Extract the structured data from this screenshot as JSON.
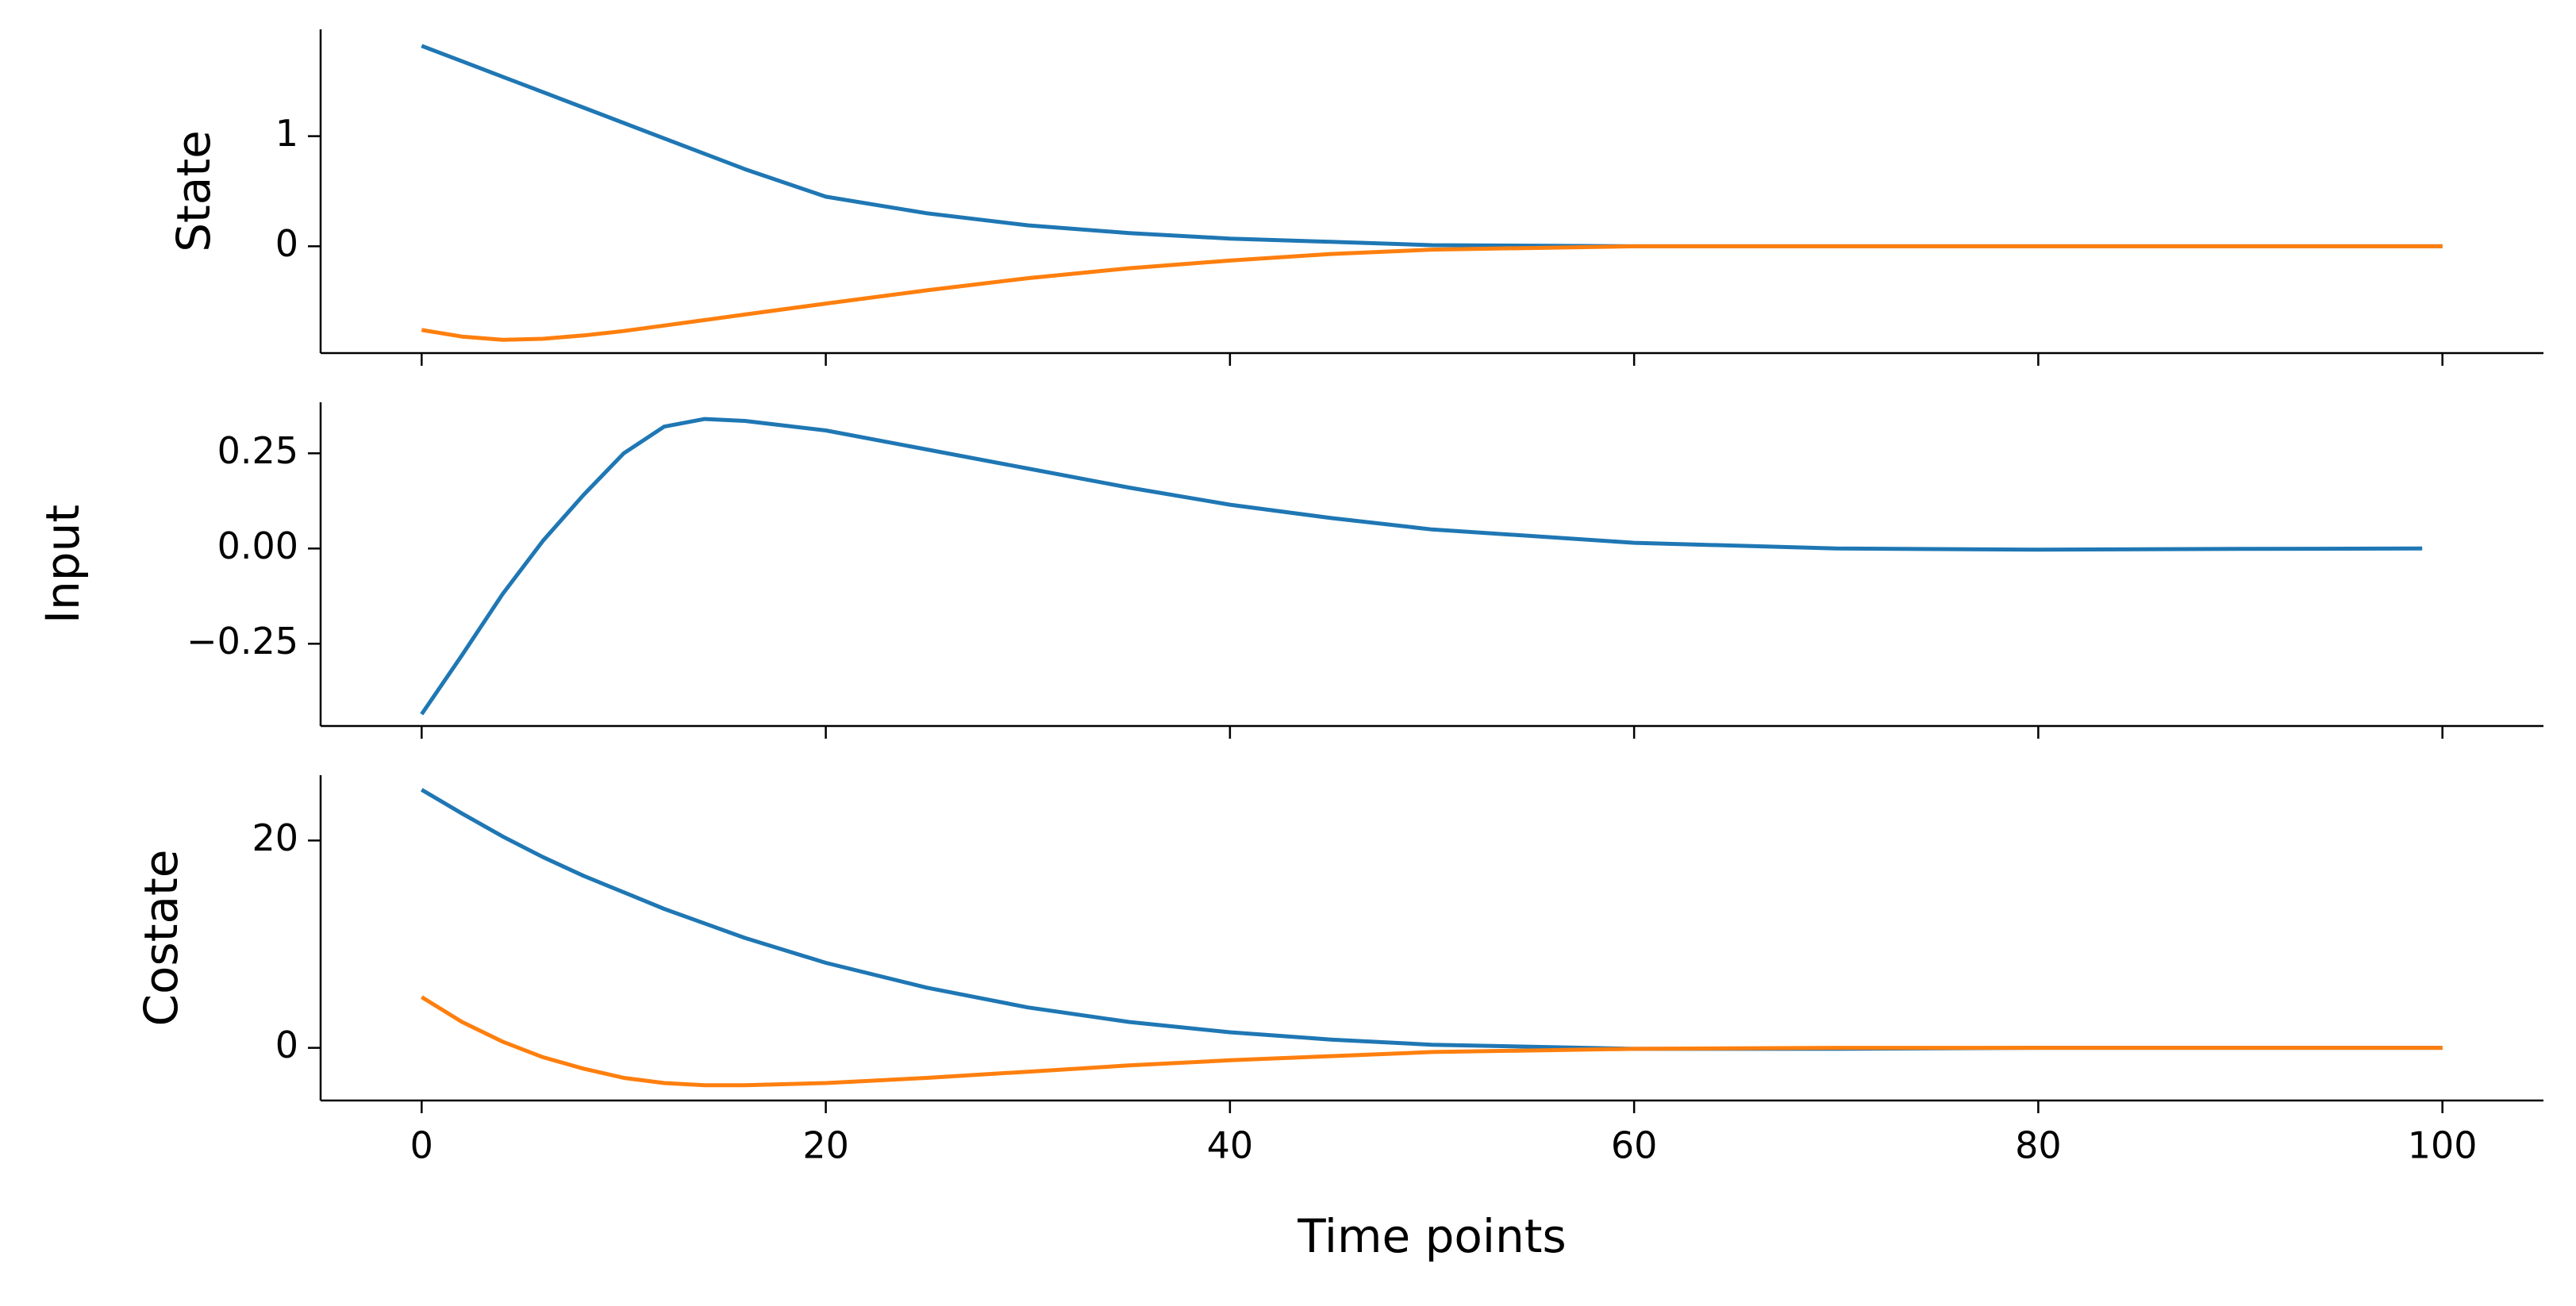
{
  "chart_data": [
    {
      "type": "line",
      "ylabel": "State",
      "x": [
        0,
        2,
        4,
        6,
        8,
        10,
        12,
        14,
        16,
        20,
        25,
        30,
        35,
        40,
        45,
        50,
        60,
        70,
        80,
        90,
        100
      ],
      "series": [
        {
          "color": "#1f77b4",
          "values": [
            1.82,
            1.68,
            1.54,
            1.4,
            1.26,
            1.12,
            0.98,
            0.84,
            0.7,
            0.45,
            0.3,
            0.19,
            0.12,
            0.07,
            0.04,
            0.01,
            0,
            0,
            0,
            0,
            0
          ]
        },
        {
          "color": "#ff7f0e",
          "values": [
            -0.76,
            -0.82,
            -0.85,
            -0.84,
            -0.81,
            -0.77,
            -0.72,
            -0.67,
            -0.62,
            -0.52,
            -0.4,
            -0.29,
            -0.2,
            -0.13,
            -0.07,
            -0.03,
            0,
            0,
            0,
            0,
            0
          ]
        }
      ],
      "xlim": [
        -5,
        105
      ],
      "xticks": [
        0,
        20,
        40,
        60,
        80,
        100
      ],
      "ylim": [
        -0.97,
        1.97
      ],
      "yticks": [
        0,
        1
      ]
    },
    {
      "type": "line",
      "ylabel": "Input",
      "x": [
        0,
        2,
        4,
        6,
        8,
        10,
        12,
        14,
        16,
        20,
        25,
        30,
        35,
        40,
        45,
        50,
        60,
        70,
        80,
        90,
        99
      ],
      "series": [
        {
          "color": "#1f77b4",
          "values": [
            -0.435,
            -0.28,
            -0.12,
            0.02,
            0.14,
            0.25,
            0.32,
            0.34,
            0.335,
            0.31,
            0.26,
            0.21,
            0.16,
            0.115,
            0.08,
            0.05,
            0.015,
            0,
            -0.003,
            -0.001,
            0
          ]
        }
      ],
      "xlim": [
        -5,
        105
      ],
      "xticks": [
        0,
        20,
        40,
        60,
        80,
        100
      ],
      "ylim": [
        -0.466,
        0.384
      ],
      "yticks": [
        {
          "value": -0.25,
          "label": "−0.25"
        },
        {
          "value": 0,
          "label": "0.00"
        },
        {
          "value": 0.25,
          "label": "0.25"
        }
      ]
    },
    {
      "type": "line",
      "ylabel": "Costate",
      "xlabel": "Time points",
      "x": [
        0,
        2,
        4,
        6,
        8,
        10,
        12,
        14,
        16,
        20,
        25,
        30,
        35,
        40,
        45,
        50,
        60,
        70,
        80,
        90,
        100
      ],
      "series": [
        {
          "color": "#1f77b4",
          "values": [
            24.9,
            22.6,
            20.4,
            18.4,
            16.6,
            15,
            13.4,
            12,
            10.6,
            8.2,
            5.8,
            3.9,
            2.5,
            1.5,
            0.8,
            0.3,
            -0.1,
            -0.1,
            0,
            0,
            0
          ]
        },
        {
          "color": "#ff7f0e",
          "values": [
            4.9,
            2.5,
            0.6,
            -0.9,
            -2,
            -2.9,
            -3.4,
            -3.6,
            -3.6,
            -3.4,
            -2.9,
            -2.3,
            -1.7,
            -1.2,
            -0.8,
            -0.4,
            -0.1,
            0,
            0,
            0,
            0
          ]
        }
      ],
      "xlim": [
        -5,
        105
      ],
      "xticks": [
        0,
        20,
        40,
        60,
        80,
        100
      ],
      "ylim": [
        -5.08,
        26.3
      ],
      "yticks": [
        0,
        20
      ]
    }
  ]
}
